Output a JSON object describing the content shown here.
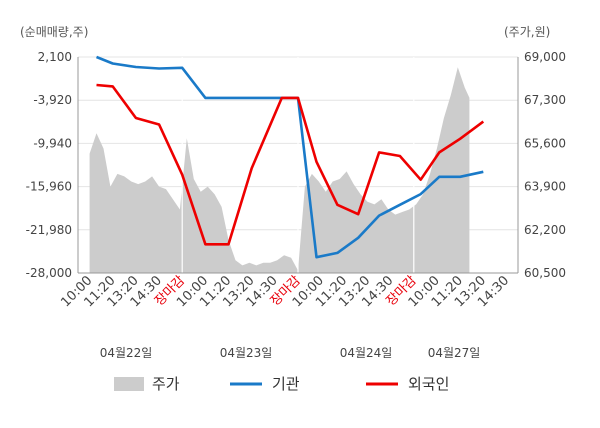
{
  "chart_data": {
    "type": "line",
    "left_axis_unit": "(순매매량,주)",
    "right_axis_unit": "(주가,원)",
    "left_ticks": [
      "2,100",
      "-3,920",
      "-9,940",
      "-15,960",
      "-21,980",
      "-28,000"
    ],
    "right_ticks": [
      "69,000",
      "67,300",
      "65,600",
      "63,900",
      "62,200",
      "60,500"
    ],
    "left_range": [
      -28000,
      2100
    ],
    "right_range": [
      60500,
      69000
    ],
    "x_ticks": [
      {
        "label": "10:00",
        "closing": false
      },
      {
        "label": "11:20",
        "closing": false
      },
      {
        "label": "13:20",
        "closing": false
      },
      {
        "label": "14:30",
        "closing": false
      },
      {
        "label": "장마감",
        "closing": true
      },
      {
        "label": "10:00",
        "closing": false
      },
      {
        "label": "11:20",
        "closing": false
      },
      {
        "label": "13:20",
        "closing": false
      },
      {
        "label": "14:30",
        "closing": false
      },
      {
        "label": "장마감",
        "closing": true
      },
      {
        "label": "10:00",
        "closing": false
      },
      {
        "label": "11:20",
        "closing": false
      },
      {
        "label": "13:20",
        "closing": false
      },
      {
        "label": "14:30",
        "closing": false
      },
      {
        "label": "장마감",
        "closing": true
      },
      {
        "label": "10:00",
        "closing": false
      },
      {
        "label": "11:20",
        "closing": false
      },
      {
        "label": "13:20",
        "closing": false
      },
      {
        "label": "14:30",
        "closing": false
      }
    ],
    "dates": [
      "04월22일",
      "04월23일",
      "04월24일",
      "04월27일"
    ],
    "session_breaks": [
      4,
      9,
      14
    ],
    "legend": [
      {
        "name": "주가",
        "color": "#cccccc",
        "kind": "area"
      },
      {
        "name": "기관",
        "color": "#1a7ac8",
        "kind": "line"
      },
      {
        "name": "외국인",
        "color": "#ee0000",
        "kind": "line"
      }
    ],
    "series": [
      {
        "name": "기관",
        "axis": "left",
        "x": [
          0.3,
          1.0,
          2.0,
          3.0,
          4.0,
          5.0,
          6.0,
          7.0,
          8.3,
          9.0,
          9.8,
          10.7,
          11.6,
          12.5,
          13.4,
          14.3,
          15.1,
          16.0,
          17.0
        ],
        "values": [
          2.1,
          1.2,
          0.7,
          0.5,
          0.6,
          -3.6,
          -3.6,
          -3.6,
          -3.6,
          -3.6,
          -25.8,
          -25.2,
          -23.1,
          -20.0,
          -18.5,
          -17.0,
          -14.6,
          -14.6,
          -13.9
        ]
      },
      {
        "name": "외국인",
        "axis": "left",
        "x": [
          0.3,
          1.0,
          2.0,
          3.0,
          4.0,
          5.0,
          6.0,
          7.0,
          8.3,
          9.0,
          9.8,
          10.7,
          11.6,
          12.5,
          13.4,
          14.3,
          15.1,
          16.0,
          17.0
        ],
        "values": [
          -1.8,
          -2.0,
          -6.4,
          -7.3,
          -14.3,
          -24.0,
          -24.0,
          -13.4,
          -3.6,
          -3.6,
          -12.5,
          -18.5,
          -19.8,
          -11.2,
          -11.7,
          -15.0,
          -11.2,
          -9.3,
          -6.9
        ]
      },
      {
        "name": "주가",
        "axis": "right",
        "x": [
          0.0,
          0.3,
          0.6,
          0.9,
          1.2,
          1.5,
          1.8,
          2.1,
          2.4,
          2.7,
          3.0,
          3.3,
          3.6,
          3.9,
          4.2,
          4.5,
          4.8,
          5.1,
          5.4,
          5.7,
          6.0,
          6.3,
          6.6,
          6.9,
          7.2,
          7.5,
          7.8,
          8.1,
          8.4,
          8.7,
          9.0,
          9.3,
          9.6,
          9.9,
          10.2,
          10.5,
          10.8,
          11.1,
          11.4,
          11.7,
          12.0,
          12.3,
          12.6,
          12.9,
          13.2,
          13.5,
          13.8,
          14.1,
          14.4,
          14.7,
          15.0,
          15.3,
          15.6,
          15.9,
          16.2,
          16.4
        ],
        "values": [
          65200,
          66000,
          65400,
          63900,
          64400,
          64300,
          64100,
          64000,
          64100,
          64300,
          63900,
          63800,
          63400,
          63000,
          65800,
          64200,
          63700,
          63900,
          63600,
          63100,
          61800,
          61000,
          60800,
          60900,
          60800,
          60900,
          60900,
          61000,
          61200,
          61100,
          60600,
          63900,
          64400,
          64100,
          63700,
          64100,
          64200,
          64500,
          64000,
          63600,
          63300,
          63200,
          63400,
          63000,
          62800,
          62900,
          63000,
          63200,
          63600,
          64400,
          65400,
          66600,
          67500,
          68600,
          67800,
          67400
        ]
      }
    ]
  }
}
